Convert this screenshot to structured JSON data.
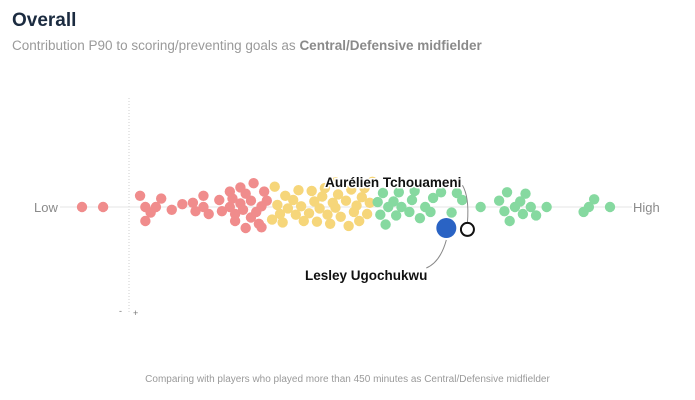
{
  "header": {
    "title": "Overall",
    "subtitle_prefix": "Contribution P90 to scoring/preventing goals as",
    "subtitle_role": "Central/Defensive midfielder"
  },
  "footnote": "Comparing with players who played more than 450 minutes as Central/Defensive midfielder",
  "chart_data": {
    "type": "scatter",
    "subtype": "beeswarm",
    "x_label_low": "Low",
    "x_label_high": "High",
    "marker_minus": "-",
    "marker_plus": "+",
    "grid": false,
    "colors": {
      "low": "#f08c8c",
      "mid": "#f6d67a",
      "high": "#86d9a0",
      "highlight": "#2a63c4",
      "compare_stroke": "#111111",
      "axis": "#e6e6e6",
      "vline": "#cfcfcf"
    },
    "players": [
      {
        "name": "Lesley Ugochukwu",
        "role": "highlight",
        "x": 0.69
      },
      {
        "name": "Aurélien Tchouameni",
        "role": "compare",
        "x": 0.73
      }
    ],
    "points": [
      {
        "x": 0.0,
        "y": 0,
        "band": "low"
      },
      {
        "x": 0.04,
        "y": 0,
        "band": "low"
      },
      {
        "x": 0.11,
        "y": 0.8,
        "band": "low"
      },
      {
        "x": 0.12,
        "y": 0,
        "band": "low"
      },
      {
        "x": 0.13,
        "y": -0.4,
        "band": "low"
      },
      {
        "x": 0.12,
        "y": -1.0,
        "band": "low"
      },
      {
        "x": 0.14,
        "y": 0,
        "band": "low"
      },
      {
        "x": 0.15,
        "y": 0.6,
        "band": "low"
      },
      {
        "x": 0.17,
        "y": -0.2,
        "band": "low"
      },
      {
        "x": 0.19,
        "y": 0.2,
        "band": "low"
      },
      {
        "x": 0.21,
        "y": 0.3,
        "band": "low"
      },
      {
        "x": 0.215,
        "y": -0.3,
        "band": "low"
      },
      {
        "x": 0.23,
        "y": 0.8,
        "band": "low"
      },
      {
        "x": 0.23,
        "y": 0,
        "band": "low"
      },
      {
        "x": 0.24,
        "y": -0.5,
        "band": "low"
      },
      {
        "x": 0.26,
        "y": 0.5,
        "band": "low"
      },
      {
        "x": 0.265,
        "y": -0.3,
        "band": "low"
      },
      {
        "x": 0.28,
        "y": 1.1,
        "band": "low"
      },
      {
        "x": 0.28,
        "y": 0,
        "band": "low"
      },
      {
        "x": 0.285,
        "y": 0.6,
        "band": "low"
      },
      {
        "x": 0.29,
        "y": -0.5,
        "band": "low"
      },
      {
        "x": 0.29,
        "y": -1.0,
        "band": "low"
      },
      {
        "x": 0.3,
        "y": 1.4,
        "band": "low"
      },
      {
        "x": 0.3,
        "y": 0.25,
        "band": "low"
      },
      {
        "x": 0.305,
        "y": -0.2,
        "band": "low"
      },
      {
        "x": 0.31,
        "y": -1.5,
        "band": "low"
      },
      {
        "x": 0.31,
        "y": 0.95,
        "band": "low"
      },
      {
        "x": 0.32,
        "y": 0.45,
        "band": "low"
      },
      {
        "x": 0.32,
        "y": -0.75,
        "band": "low"
      },
      {
        "x": 0.325,
        "y": 1.7,
        "band": "low"
      },
      {
        "x": 0.33,
        "y": -0.35,
        "band": "low"
      },
      {
        "x": 0.335,
        "y": -1.2,
        "band": "low"
      },
      {
        "x": 0.34,
        "y": 0.05,
        "band": "low"
      },
      {
        "x": 0.34,
        "y": -1.45,
        "band": "low"
      },
      {
        "x": 0.345,
        "y": 1.1,
        "band": "low"
      },
      {
        "x": 0.35,
        "y": 0.45,
        "band": "low"
      },
      {
        "x": 0.36,
        "y": -0.9,
        "band": "mid"
      },
      {
        "x": 0.365,
        "y": 1.45,
        "band": "mid"
      },
      {
        "x": 0.37,
        "y": 0.15,
        "band": "mid"
      },
      {
        "x": 0.375,
        "y": -0.5,
        "band": "mid"
      },
      {
        "x": 0.38,
        "y": -1.1,
        "band": "mid"
      },
      {
        "x": 0.385,
        "y": 0.8,
        "band": "mid"
      },
      {
        "x": 0.39,
        "y": -0.1,
        "band": "mid"
      },
      {
        "x": 0.4,
        "y": 0.5,
        "band": "mid"
      },
      {
        "x": 0.405,
        "y": -0.55,
        "band": "mid"
      },
      {
        "x": 0.41,
        "y": 1.2,
        "band": "mid"
      },
      {
        "x": 0.415,
        "y": 0.05,
        "band": "mid"
      },
      {
        "x": 0.42,
        "y": -1.0,
        "band": "mid"
      },
      {
        "x": 0.43,
        "y": -0.45,
        "band": "mid"
      },
      {
        "x": 0.435,
        "y": 1.15,
        "band": "mid"
      },
      {
        "x": 0.44,
        "y": 0.4,
        "band": "mid"
      },
      {
        "x": 0.445,
        "y": -1.05,
        "band": "mid"
      },
      {
        "x": 0.45,
        "y": -0.1,
        "band": "mid"
      },
      {
        "x": 0.455,
        "y": 0.75,
        "band": "mid"
      },
      {
        "x": 0.46,
        "y": 1.35,
        "band": "mid"
      },
      {
        "x": 0.465,
        "y": -0.55,
        "band": "mid"
      },
      {
        "x": 0.47,
        "y": -1.2,
        "band": "mid"
      },
      {
        "x": 0.475,
        "y": 0.3,
        "band": "mid"
      },
      {
        "x": 0.48,
        "y": 1.75,
        "band": "mid"
      },
      {
        "x": 0.48,
        "y": -0.05,
        "band": "mid"
      },
      {
        "x": 0.485,
        "y": 0.9,
        "band": "mid"
      },
      {
        "x": 0.49,
        "y": -0.7,
        "band": "mid"
      },
      {
        "x": 0.5,
        "y": 0.45,
        "band": "mid"
      },
      {
        "x": 0.505,
        "y": -1.35,
        "band": "mid"
      },
      {
        "x": 0.51,
        "y": 1.25,
        "band": "mid"
      },
      {
        "x": 0.515,
        "y": -0.35,
        "band": "mid"
      },
      {
        "x": 0.52,
        "y": 0.1,
        "band": "mid"
      },
      {
        "x": 0.525,
        "y": -1.0,
        "band": "mid"
      },
      {
        "x": 0.53,
        "y": 0.7,
        "band": "mid"
      },
      {
        "x": 0.535,
        "y": 1.35,
        "band": "mid"
      },
      {
        "x": 0.54,
        "y": -0.5,
        "band": "mid"
      },
      {
        "x": 0.545,
        "y": 0.3,
        "band": "mid"
      },
      {
        "x": 0.55,
        "y": 1.8,
        "band": "mid"
      },
      {
        "x": 0.56,
        "y": 0.35,
        "band": "high"
      },
      {
        "x": 0.565,
        "y": -0.55,
        "band": "high"
      },
      {
        "x": 0.57,
        "y": 1.0,
        "band": "high"
      },
      {
        "x": 0.575,
        "y": -1.25,
        "band": "high"
      },
      {
        "x": 0.58,
        "y": 0.0,
        "band": "high"
      },
      {
        "x": 0.59,
        "y": 0.4,
        "band": "high"
      },
      {
        "x": 0.595,
        "y": -0.6,
        "band": "high"
      },
      {
        "x": 0.6,
        "y": 1.05,
        "band": "high"
      },
      {
        "x": 0.605,
        "y": 0.0,
        "band": "high"
      },
      {
        "x": 0.62,
        "y": -0.35,
        "band": "high"
      },
      {
        "x": 0.625,
        "y": 0.5,
        "band": "high"
      },
      {
        "x": 0.63,
        "y": 1.15,
        "band": "high"
      },
      {
        "x": 0.64,
        "y": -0.8,
        "band": "high"
      },
      {
        "x": 0.65,
        "y": 0.0,
        "band": "high"
      },
      {
        "x": 0.66,
        "y": -0.35,
        "band": "high"
      },
      {
        "x": 0.665,
        "y": 0.65,
        "band": "high"
      },
      {
        "x": 0.68,
        "y": 1.05,
        "band": "high"
      },
      {
        "x": 0.7,
        "y": -0.4,
        "band": "high"
      },
      {
        "x": 0.71,
        "y": 1.0,
        "band": "high"
      },
      {
        "x": 0.72,
        "y": 0.5,
        "band": "high"
      },
      {
        "x": 0.755,
        "y": 0.0,
        "band": "high"
      },
      {
        "x": 0.79,
        "y": 0.45,
        "band": "high"
      },
      {
        "x": 0.8,
        "y": -0.3,
        "band": "high"
      },
      {
        "x": 0.805,
        "y": 1.05,
        "band": "high"
      },
      {
        "x": 0.81,
        "y": -1.0,
        "band": "high"
      },
      {
        "x": 0.82,
        "y": 0.0,
        "band": "high"
      },
      {
        "x": 0.83,
        "y": 0.4,
        "band": "high"
      },
      {
        "x": 0.835,
        "y": -0.5,
        "band": "high"
      },
      {
        "x": 0.84,
        "y": 0.95,
        "band": "high"
      },
      {
        "x": 0.85,
        "y": 0.0,
        "band": "high"
      },
      {
        "x": 0.86,
        "y": -0.6,
        "band": "high"
      },
      {
        "x": 0.88,
        "y": 0.0,
        "band": "high"
      },
      {
        "x": 0.95,
        "y": -0.35,
        "band": "high"
      },
      {
        "x": 0.96,
        "y": 0.0,
        "band": "high"
      },
      {
        "x": 0.97,
        "y": 0.55,
        "band": "high"
      },
      {
        "x": 1.0,
        "y": 0.0,
        "band": "high"
      }
    ]
  }
}
